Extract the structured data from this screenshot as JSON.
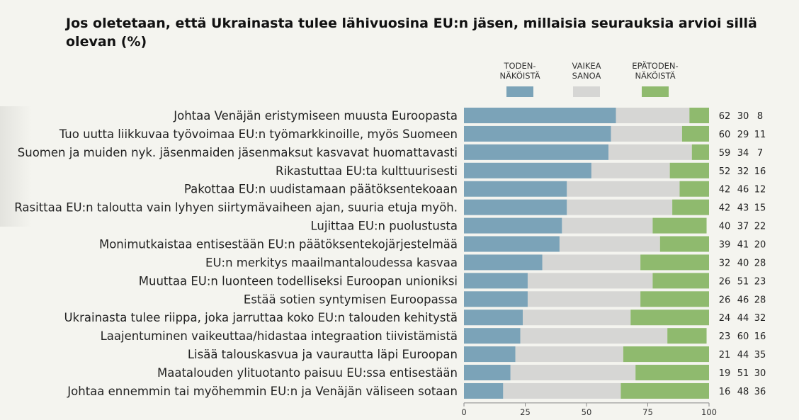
{
  "chart_data": {
    "type": "bar",
    "stacked": true,
    "orientation": "horizontal",
    "title": "Jos oletetaan, että Ukrainasta tulee lähivuosina EU:n jäsen, millaisia seurauksia arvioi sillä olevan (%)",
    "xlim": [
      0,
      100
    ],
    "xticks": [
      "0",
      "25",
      "50",
      "75",
      "100"
    ],
    "legend_position": "top",
    "categories": [
      "Johtaa Venäjän eristymiseen muusta Euroopasta",
      "Tuo uutta liikkuvaa työvoimaa EU:n työmarkkinoille, myös Suomeen",
      "Suomen ja muiden nyk. jäsenmaiden jäsenmaksut kasvavat huomattavasti",
      "Rikastuttaa EU:ta kulttuurisesti",
      "Pakottaa EU:n uudistamaan päätöksentekoaan",
      "Rasittaa EU:n taloutta vain lyhyen siirtymävaiheen ajan, suuria etuja myöh.",
      "Lujittaa EU:n puolustusta",
      "Monimutkaistaa entisestään EU:n päätöksentekojärjestelmää",
      "EU:n merkitys maailmantaloudessa kasvaa",
      "Muuttaa EU:n luonteen todelliseksi Euroopan unioniksi",
      "Estää sotien syntymisen Euroopassa",
      "Ukrainasta tulee riippa, joka jarruttaa koko EU:n talouden kehitystä",
      "Laajentuminen vaikeuttaa/hidastaa integraation tiivistämistä",
      "Lisää talouskasvua ja vaurautta läpi Euroopan",
      "Maatalouden ylituotanto paisuu EU:ssa entisestään",
      "Johtaa ennemmin tai myöhemmin EU:n ja Venäjän väliseen sotaan"
    ],
    "series": [
      {
        "name": "TODEN-\nNÄKÖISTÄ",
        "color": "#7ba3b8",
        "values": [
          62,
          60,
          59,
          52,
          42,
          42,
          40,
          39,
          32,
          26,
          26,
          24,
          23,
          21,
          19,
          16
        ]
      },
      {
        "name": "VAIKEA\nSANOA",
        "color": "#d6d6d4",
        "values": [
          30,
          29,
          34,
          32,
          46,
          43,
          37,
          41,
          40,
          51,
          46,
          44,
          60,
          44,
          51,
          48
        ]
      },
      {
        "name": "EPÄTODEN-\nNÄKÖISTÄ",
        "color": "#8fba6e",
        "values": [
          8,
          11,
          7,
          16,
          12,
          15,
          22,
          20,
          28,
          23,
          28,
          32,
          16,
          35,
          30,
          36
        ]
      }
    ]
  }
}
